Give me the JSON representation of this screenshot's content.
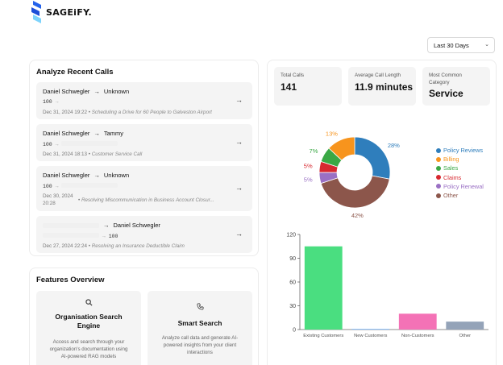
{
  "brand": {
    "name": "SAGEiFY.",
    "colors": {
      "primary": "#2563eb",
      "accent": "#7dd3fc"
    }
  },
  "date_range": {
    "selected": "Last 30 Days"
  },
  "recent_calls": {
    "title": "Analyze Recent Calls",
    "calls": [
      {
        "from": "Daniel Schwegler",
        "to": "Unknown",
        "number": "100",
        "timestamp": "Dec 31, 2024 19:22",
        "topic": "Scheduling a Drive for 60 People to Galveston Airport"
      },
      {
        "from": "Daniel Schwegler",
        "to": "Tammy",
        "number": "100",
        "timestamp": "Dec 31, 2024 18:13",
        "topic": "Customer Service Call"
      },
      {
        "from": "Daniel Schwegler",
        "to": "Unknown",
        "number": "100",
        "timestamp_line1": "Dec 30, 2024",
        "timestamp_line2": "20:28",
        "topic": "Resolving Miscommunication in Business Account Closur..."
      },
      {
        "from": "",
        "to": "Daniel Schwegler",
        "number": "100",
        "timestamp": "Dec 27, 2024 22:24",
        "topic": "Resolving an Insurance Deductible Claim"
      }
    ]
  },
  "features": {
    "title": "Features Overview",
    "items": [
      {
        "icon": "search-icon",
        "title_line1": "Organisation Search",
        "title_line2": "Engine",
        "desc_lines": [
          "Access and search through your",
          "organization's documentation using",
          "AI-powered RAG models"
        ]
      },
      {
        "icon": "phone-icon",
        "title_line1": "Smart Search",
        "title_line2": "",
        "desc_lines": [
          "Analyze call data and generate AI-",
          "powered insights from your client",
          "interactions"
        ]
      }
    ]
  },
  "stats": {
    "total_calls": {
      "label": "Total Calls",
      "value": "141"
    },
    "avg_length": {
      "label": "Average Call Length",
      "value": "11.9 minutes"
    },
    "common_category": {
      "label_line1": "Most Common",
      "label_line2": "Category",
      "value": "Service"
    }
  },
  "chart_data": [
    {
      "type": "pie",
      "variant": "donut",
      "categories": [
        "Policy Reviews",
        "Billing",
        "Sales",
        "Claims",
        "Policy Renewal",
        "Other"
      ],
      "values": [
        28,
        13,
        7,
        5,
        5,
        42
      ],
      "labels": [
        "28%",
        "13%",
        "7%",
        "5%",
        "5%",
        "42%"
      ],
      "colors": [
        "#2f7ebc",
        "#f7941d",
        "#3aa845",
        "#d7282f",
        "#9a70c4",
        "#8c564b"
      ],
      "legend_position": "right"
    },
    {
      "type": "bar",
      "categories": [
        "Existing Customers",
        "New Customers",
        "Non-Customers",
        "Other"
      ],
      "values": [
        105,
        1,
        20,
        10
      ],
      "colors": [
        "#4ade80",
        "#93c5fd",
        "#f472b6",
        "#94a3b8"
      ],
      "yticks": [
        "0",
        "30",
        "60",
        "90",
        "120"
      ],
      "ylim": [
        0,
        120
      ],
      "grid": false
    }
  ]
}
